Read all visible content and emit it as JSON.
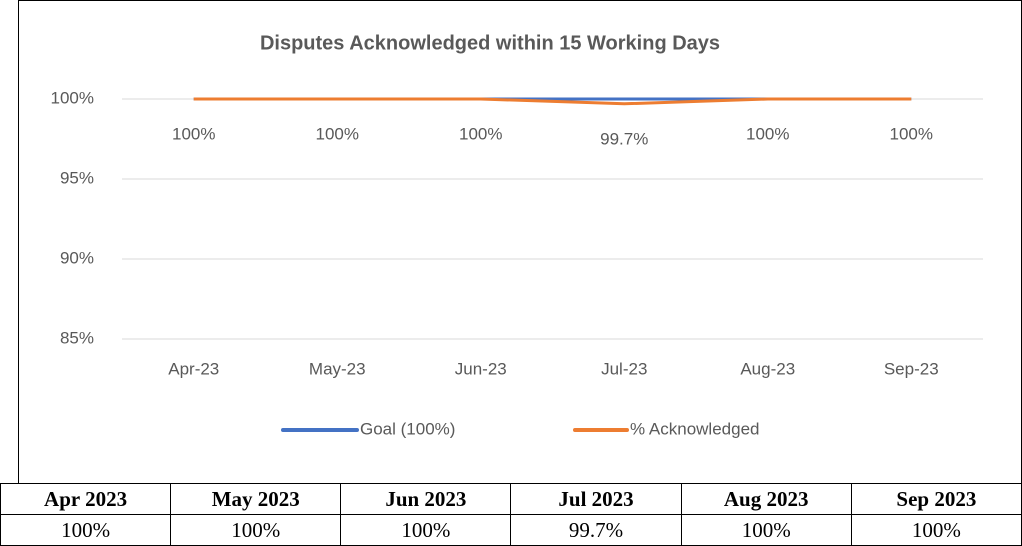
{
  "chart_data": {
    "type": "line",
    "title": "Disputes Acknowledged within 15 Working Days",
    "categories": [
      "Apr-23",
      "May-23",
      "Jun-23",
      "Jul-23",
      "Aug-23",
      "Sep-23"
    ],
    "series": [
      {
        "name": "Goal (100%)",
        "color": "#4472c4",
        "values": [
          100,
          100,
          100,
          100,
          100,
          100
        ]
      },
      {
        "name": "% Acknowledged",
        "color": "#ed7d31",
        "values": [
          100,
          100,
          100,
          99.7,
          100,
          100
        ],
        "value_labels": [
          "100%",
          "100%",
          "100%",
          "99.7%",
          "100%",
          "100%"
        ]
      }
    ],
    "ylim": [
      85,
      100
    ],
    "yticks": [
      {
        "value": 85,
        "label": "85%"
      },
      {
        "value": 90,
        "label": "90%"
      },
      {
        "value": 95,
        "label": "95%"
      },
      {
        "value": 100,
        "label": "100%"
      }
    ],
    "grid": true,
    "legend": "bottom"
  },
  "table": {
    "header": [
      "Apr 2023",
      "May 2023",
      "Jun 2023",
      "Jul 2023",
      "Aug 2023",
      "Sep 2023"
    ],
    "rows": [
      [
        "100%",
        "100%",
        "100%",
        "99.7%",
        "100%",
        "100%"
      ]
    ]
  }
}
